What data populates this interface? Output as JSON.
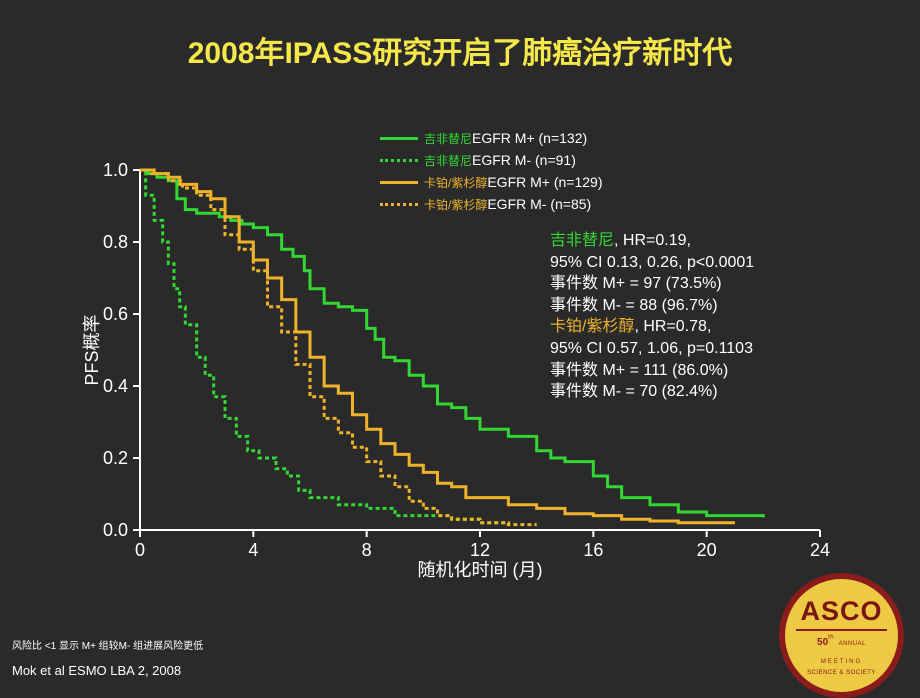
{
  "title": {
    "text": "2008年IPASS研究开启了肺癌治疗新时代",
    "color": "#f6e84a",
    "fontsize": 30
  },
  "background_color": "#2a2a2a",
  "chart": {
    "type": "line",
    "xlabel": "随机化时间 (月)",
    "ylabel": "PFS概率",
    "label_fontsize": 18,
    "label_color": "#ffffff",
    "xlim": [
      0,
      24
    ],
    "ylim": [
      0,
      1.0
    ],
    "xticks": [
      0,
      4,
      8,
      12,
      16,
      20,
      24
    ],
    "yticks": [
      0.0,
      0.2,
      0.4,
      0.6,
      0.8,
      1.0
    ],
    "axis_color": "#ffffff",
    "tick_color": "#ffffff",
    "series": [
      {
        "name_prefix": "吉非替尼",
        "name_suffix": "EGFR M+ (n=132)",
        "prefix_color": "#33d633",
        "suffix_color": "#ffffff",
        "color": "#33d633",
        "dash": "none",
        "width": 3,
        "points": [
          [
            0,
            1.0
          ],
          [
            0.3,
            0.99
          ],
          [
            0.6,
            0.98
          ],
          [
            1,
            0.97
          ],
          [
            1.3,
            0.92
          ],
          [
            1.6,
            0.89
          ],
          [
            2,
            0.88
          ],
          [
            2.8,
            0.87
          ],
          [
            3.2,
            0.86
          ],
          [
            3.6,
            0.85
          ],
          [
            4,
            0.84
          ],
          [
            4.5,
            0.82
          ],
          [
            5,
            0.78
          ],
          [
            5.4,
            0.76
          ],
          [
            5.8,
            0.72
          ],
          [
            6,
            0.67
          ],
          [
            6.5,
            0.63
          ],
          [
            7,
            0.62
          ],
          [
            7.5,
            0.61
          ],
          [
            8,
            0.56
          ],
          [
            8.3,
            0.53
          ],
          [
            8.6,
            0.48
          ],
          [
            9,
            0.47
          ],
          [
            9.5,
            0.43
          ],
          [
            10,
            0.4
          ],
          [
            10.5,
            0.35
          ],
          [
            11,
            0.34
          ],
          [
            11.5,
            0.31
          ],
          [
            12,
            0.28
          ],
          [
            13,
            0.26
          ],
          [
            14,
            0.22
          ],
          [
            14.5,
            0.2
          ],
          [
            15,
            0.19
          ],
          [
            16,
            0.15
          ],
          [
            16.5,
            0.12
          ],
          [
            17,
            0.09
          ],
          [
            17.5,
            0.09
          ],
          [
            18,
            0.07
          ],
          [
            19,
            0.05
          ],
          [
            20,
            0.04
          ],
          [
            21,
            0.04
          ],
          [
            22,
            0.035
          ]
        ]
      },
      {
        "name_prefix": "吉非替尼",
        "name_suffix": "EGFR M- (n=91)",
        "prefix_color": "#33d633",
        "suffix_color": "#ffffff",
        "color": "#33d633",
        "dash": "4,3",
        "width": 3,
        "points": [
          [
            0,
            1.0
          ],
          [
            0.2,
            0.93
          ],
          [
            0.5,
            0.86
          ],
          [
            0.8,
            0.8
          ],
          [
            1.0,
            0.74
          ],
          [
            1.2,
            0.67
          ],
          [
            1.4,
            0.62
          ],
          [
            1.6,
            0.57
          ],
          [
            2.0,
            0.48
          ],
          [
            2.3,
            0.43
          ],
          [
            2.6,
            0.37
          ],
          [
            3.0,
            0.31
          ],
          [
            3.4,
            0.26
          ],
          [
            3.8,
            0.22
          ],
          [
            4.2,
            0.2
          ],
          [
            4.8,
            0.17
          ],
          [
            5.2,
            0.15
          ],
          [
            5.6,
            0.11
          ],
          [
            6,
            0.09
          ],
          [
            6.5,
            0.09
          ],
          [
            7,
            0.07
          ],
          [
            8,
            0.06
          ],
          [
            9,
            0.04
          ],
          [
            10,
            0.04
          ],
          [
            11,
            0.03
          ],
          [
            12,
            0.02
          ],
          [
            13,
            0.02
          ]
        ]
      },
      {
        "name_prefix": "卡铂/紫杉醇",
        "name_suffix": "EGFR M+ (n=129)",
        "prefix_color": "#efb32a",
        "suffix_color": "#ffffff",
        "color": "#efb32a",
        "dash": "none",
        "width": 3,
        "points": [
          [
            0,
            1.0
          ],
          [
            0.5,
            0.99
          ],
          [
            1,
            0.98
          ],
          [
            1.4,
            0.96
          ],
          [
            2,
            0.94
          ],
          [
            2.5,
            0.92
          ],
          [
            3,
            0.87
          ],
          [
            3.5,
            0.8
          ],
          [
            4,
            0.75
          ],
          [
            4.5,
            0.7
          ],
          [
            5,
            0.64
          ],
          [
            5.5,
            0.55
          ],
          [
            6,
            0.48
          ],
          [
            6.5,
            0.4
          ],
          [
            7,
            0.38
          ],
          [
            7.5,
            0.32
          ],
          [
            8,
            0.28
          ],
          [
            8.5,
            0.24
          ],
          [
            9,
            0.21
          ],
          [
            9.5,
            0.18
          ],
          [
            10,
            0.16
          ],
          [
            10.5,
            0.13
          ],
          [
            11,
            0.12
          ],
          [
            11.5,
            0.09
          ],
          [
            12,
            0.09
          ],
          [
            13,
            0.07
          ],
          [
            14,
            0.06
          ],
          [
            15,
            0.045
          ],
          [
            16,
            0.04
          ],
          [
            17,
            0.03
          ],
          [
            18,
            0.025
          ],
          [
            19,
            0.02
          ],
          [
            20,
            0.02
          ],
          [
            21,
            0.02
          ]
        ]
      },
      {
        "name_prefix": "卡铂/紫杉醇",
        "name_suffix": "EGFR M- (n=85)",
        "prefix_color": "#efb32a",
        "suffix_color": "#ffffff",
        "color": "#efb32a",
        "dash": "4,3",
        "width": 3,
        "points": [
          [
            0,
            1.0
          ],
          [
            0.4,
            0.99
          ],
          [
            1,
            0.97
          ],
          [
            1.5,
            0.95
          ],
          [
            2,
            0.93
          ],
          [
            2.5,
            0.89
          ],
          [
            3,
            0.82
          ],
          [
            3.5,
            0.78
          ],
          [
            4,
            0.72
          ],
          [
            4.5,
            0.62
          ],
          [
            5,
            0.55
          ],
          [
            5.5,
            0.46
          ],
          [
            6,
            0.37
          ],
          [
            6.5,
            0.31
          ],
          [
            7,
            0.27
          ],
          [
            7.5,
            0.23
          ],
          [
            8,
            0.19
          ],
          [
            8.5,
            0.15
          ],
          [
            9,
            0.12
          ],
          [
            9.5,
            0.08
          ],
          [
            10,
            0.06
          ],
          [
            10.5,
            0.04
          ],
          [
            11,
            0.03
          ],
          [
            12,
            0.02
          ],
          [
            13,
            0.015
          ],
          [
            14,
            0.015
          ]
        ]
      }
    ]
  },
  "stats": {
    "group1": {
      "name": "吉非替尼",
      "name_color": "#33d633",
      "lines": [
        ", HR=0.19,",
        "95% CI 0.13, 0.26, p<0.0001",
        "事件数 M+ = 97 (73.5%)",
        "事件数 M- = 88 (96.7%)"
      ],
      "text_color": "#ffffff"
    },
    "group2": {
      "name": "卡铂/紫杉醇",
      "name_color": "#efb32a",
      "lines": [
        ", HR=0.78,",
        "95% CI 0.57, 1.06, p=0.1103",
        "事件数 M+ = 111 (86.0%)",
        "事件数 M- = 70 (82.4%)"
      ],
      "text_color": "#ffffff"
    }
  },
  "footnote": "风险比 <1 显示 M+ 组较M- 组进展风险更低",
  "citation": "Mok et al ESMO LBA 2, 2008",
  "logo": {
    "main": "ASCO",
    "line1": "50",
    "line1_suffix": "th",
    "line2": "ANNUAL",
    "line3": "MEETING",
    "bottom": "SCIENCE & SOCIETY",
    "bg": "#eec944",
    "border": "#8a1c1c"
  }
}
